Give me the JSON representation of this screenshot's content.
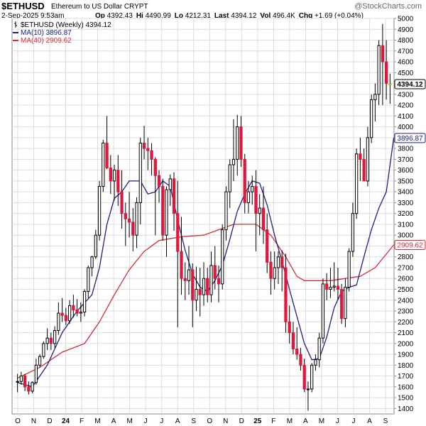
{
  "header": {
    "symbol": "$ETHUSD",
    "description": "Ethereum to US Dollar  CRYPT",
    "logo": "@StockCharts.com",
    "date": "2-Sep-2025 9:53am",
    "quote": [
      {
        "label": "Op",
        "value": "4392.43"
      },
      {
        "label": "Hi",
        "value": "4490.99"
      },
      {
        "label": "Lo",
        "value": "4212.31"
      },
      {
        "label": "Last",
        "value": "4394.12"
      },
      {
        "label": "Vol",
        "value": "496.4K"
      },
      {
        "label": "Chg",
        "value": "+1.69 (+0.04%)"
      }
    ]
  },
  "colors": {
    "up": "#ffffff",
    "down": "#e0163d",
    "wick": "#000000",
    "ma10": "#1a2080",
    "ma40": "#d42b3c",
    "grid": "#dcdcdc",
    "last_bar": "#f5e642"
  },
  "chart_data": {
    "type": "candlestick",
    "title": "$ETHUSD (Weekly) 4394.12",
    "ylim": [
      1350,
      5000
    ],
    "y_ticks": [
      1400,
      1500,
      1600,
      1700,
      1800,
      1900,
      2000,
      2100,
      2200,
      2300,
      2400,
      2500,
      2600,
      2700,
      2800,
      2900,
      3000,
      3100,
      3200,
      3300,
      3400,
      3500,
      3600,
      3700,
      3800,
      3900,
      4000,
      4100,
      4200,
      4300,
      4400,
      4500,
      4600,
      4700,
      4800,
      4900,
      5000
    ],
    "x_ticks": [
      "O",
      "N",
      "D",
      "24",
      "F",
      "M",
      "A",
      "M",
      "J",
      "J",
      "A",
      "S",
      "O",
      "N",
      "D",
      "25",
      "F",
      "M",
      "A",
      "M",
      "J",
      "J",
      "A",
      "S"
    ],
    "legend": [
      {
        "name": "$ETHUSD (Weekly)",
        "value": "4394.12"
      },
      {
        "name": "MA(10)",
        "value": "3896.87"
      },
      {
        "name": "MA(40)",
        "value": "2909.62"
      }
    ],
    "price_labels": [
      {
        "name": "Last",
        "value": "4394.12"
      },
      {
        "name": "MA(10)",
        "value": "3896.87"
      },
      {
        "name": "MA(40)",
        "value": "2909.62"
      }
    ],
    "candles": [
      [
        1650,
        1720,
        1550,
        1650
      ],
      [
        1650,
        1740,
        1620,
        1700
      ],
      [
        1700,
        1720,
        1560,
        1600
      ],
      [
        1600,
        1650,
        1530,
        1560
      ],
      [
        1560,
        1650,
        1540,
        1640
      ],
      [
        1640,
        1860,
        1620,
        1800
      ],
      [
        1800,
        1900,
        1780,
        1880
      ],
      [
        1880,
        2020,
        1860,
        2000
      ],
      [
        2000,
        2140,
        1940,
        2050
      ],
      [
        2050,
        2100,
        1940,
        2000
      ],
      [
        2000,
        2160,
        1960,
        2120
      ],
      [
        2120,
        2380,
        2080,
        2280
      ],
      [
        2280,
        2420,
        2200,
        2260
      ],
      [
        2260,
        2330,
        2170,
        2210
      ],
      [
        2210,
        2400,
        2180,
        2350
      ],
      [
        2350,
        2450,
        2240,
        2310
      ],
      [
        2310,
        2410,
        2250,
        2280
      ],
      [
        2280,
        2380,
        2200,
        2290
      ],
      [
        2290,
        2500,
        2250,
        2480
      ],
      [
        2480,
        2720,
        2420,
        2700
      ],
      [
        2700,
        2810,
        2620,
        2800
      ],
      [
        2800,
        3050,
        2780,
        3000
      ],
      [
        3000,
        3500,
        2950,
        3450
      ],
      [
        3450,
        3880,
        3400,
        3850
      ],
      [
        3850,
        4100,
        3610,
        3620
      ],
      [
        3620,
        3740,
        3380,
        3500
      ],
      [
        3500,
        3650,
        3320,
        3600
      ],
      [
        3600,
        3740,
        3270,
        3400
      ],
      [
        3400,
        3600,
        3060,
        3200
      ],
      [
        3200,
        3300,
        2900,
        3150
      ],
      [
        3150,
        3400,
        2980,
        3120
      ],
      [
        3120,
        3250,
        2850,
        3000
      ],
      [
        3000,
        3350,
        2880,
        3300
      ],
      [
        3300,
        3900,
        3100,
        3850
      ],
      [
        3850,
        4010,
        3700,
        3800
      ],
      [
        3800,
        3900,
        3600,
        3780
      ],
      [
        3780,
        3850,
        3550,
        3700
      ],
      [
        3700,
        3720,
        3000,
        3550
      ],
      [
        3550,
        3600,
        3300,
        3450
      ],
      [
        3450,
        3520,
        2950,
        3000
      ],
      [
        3000,
        3450,
        2800,
        3420
      ],
      [
        3420,
        3560,
        3270,
        3520
      ],
      [
        3520,
        3580,
        3040,
        3200
      ],
      [
        3200,
        3500,
        2150,
        2850
      ],
      [
        2850,
        3170,
        2450,
        2600
      ],
      [
        2600,
        2750,
        2400,
        2580
      ],
      [
        2580,
        2900,
        2450,
        2680
      ],
      [
        2680,
        2740,
        2150,
        2400
      ],
      [
        2400,
        2710,
        2300,
        2500
      ],
      [
        2500,
        2700,
        2250,
        2450
      ],
      [
        2450,
        2750,
        2350,
        2600
      ],
      [
        2600,
        2700,
        2380,
        2450
      ],
      [
        2450,
        2850,
        2380,
        2720
      ],
      [
        2720,
        2900,
        2500,
        2600
      ],
      [
        2600,
        2720,
        2380,
        2550
      ],
      [
        2550,
        3100,
        2500,
        3050
      ],
      [
        3050,
        3450,
        2950,
        3400
      ],
      [
        3400,
        3700,
        3250,
        3650
      ],
      [
        3650,
        4070,
        3500,
        3700
      ],
      [
        3700,
        4110,
        3550,
        4000
      ],
      [
        4000,
        4100,
        3630,
        3700
      ],
      [
        3700,
        3750,
        3200,
        3300
      ],
      [
        3300,
        3500,
        3200,
        3400
      ],
      [
        3400,
        3550,
        3280,
        3450
      ],
      [
        3450,
        3600,
        2850,
        3200
      ],
      [
        3200,
        3380,
        3000,
        3250
      ],
      [
        3250,
        3450,
        2920,
        3050
      ],
      [
        3050,
        3200,
        2650,
        2750
      ],
      [
        2750,
        2850,
        2450,
        2600
      ],
      [
        2600,
        2850,
        2500,
        2700
      ],
      [
        2700,
        2850,
        2550,
        2800
      ],
      [
        2800,
        2860,
        2480,
        2700
      ],
      [
        2700,
        2830,
        2100,
        2200
      ],
      [
        2200,
        2350,
        2000,
        2100
      ],
      [
        2100,
        2200,
        1900,
        1950
      ],
      [
        1950,
        2150,
        1850,
        1900
      ],
      [
        1900,
        1960,
        1750,
        1800
      ],
      [
        1800,
        1860,
        1550,
        1580
      ],
      [
        1580,
        1650,
        1380,
        1580
      ],
      [
        1580,
        1820,
        1550,
        1800
      ],
      [
        1800,
        1900,
        1750,
        1850
      ],
      [
        1850,
        2100,
        1780,
        2050
      ],
      [
        2050,
        2600,
        2000,
        2550
      ],
      [
        2550,
        2650,
        2400,
        2500
      ],
      [
        2500,
        2700,
        2420,
        2520
      ],
      [
        2520,
        2750,
        2480,
        2530
      ],
      [
        2530,
        2700,
        2400,
        2500
      ],
      [
        2500,
        2550,
        2180,
        2230
      ],
      [
        2230,
        2600,
        2150,
        2520
      ],
      [
        2520,
        2880,
        2480,
        2850
      ],
      [
        2850,
        3300,
        2800,
        3200
      ],
      [
        3200,
        3800,
        3150,
        3750
      ],
      [
        3750,
        3900,
        3500,
        3700
      ],
      [
        3700,
        3800,
        3520,
        3500
      ],
      [
        3500,
        4000,
        3450,
        3900
      ],
      [
        3900,
        4300,
        3850,
        4250
      ],
      [
        4250,
        4400,
        4050,
        4300
      ],
      [
        4300,
        4800,
        4200,
        4750
      ],
      [
        4750,
        4950,
        4200,
        4600
      ],
      [
        4600,
        4800,
        4250,
        4400
      ],
      [
        4392.43,
        4490.99,
        4212.31,
        4394.12
      ]
    ],
    "ma10": [
      [
        0,
        1640
      ],
      [
        4,
        1600
      ],
      [
        8,
        1800
      ],
      [
        12,
        2100
      ],
      [
        16,
        2300
      ],
      [
        20,
        2450
      ],
      [
        22,
        2700
      ],
      [
        24,
        3100
      ],
      [
        26,
        3340
      ],
      [
        28,
        3400
      ],
      [
        30,
        3500
      ],
      [
        33,
        3500
      ],
      [
        35,
        3380
      ],
      [
        37,
        3400
      ],
      [
        39,
        3500
      ],
      [
        41,
        3450
      ],
      [
        43,
        3140
      ],
      [
        45,
        2860
      ],
      [
        47,
        2640
      ],
      [
        49,
        2520
      ],
      [
        51,
        2480
      ],
      [
        53,
        2580
      ],
      [
        55,
        2720
      ],
      [
        57,
        2960
      ],
      [
        59,
        3220
      ],
      [
        61,
        3380
      ],
      [
        63,
        3500
      ],
      [
        65,
        3480
      ],
      [
        67,
        3280
      ],
      [
        69,
        3000
      ],
      [
        71,
        2760
      ],
      [
        73,
        2500
      ],
      [
        75,
        2250
      ],
      [
        77,
        2000
      ],
      [
        79,
        1850
      ],
      [
        81,
        1860
      ],
      [
        83,
        2060
      ],
      [
        85,
        2330
      ],
      [
        87,
        2480
      ],
      [
        89,
        2520
      ],
      [
        91,
        2540
      ],
      [
        93,
        2800
      ],
      [
        95,
        3050
      ],
      [
        97,
        3250
      ],
      [
        99,
        3400
      ],
      [
        101,
        3900
      ]
    ],
    "ma40": [
      [
        0,
        1680
      ],
      [
        6,
        1780
      ],
      [
        12,
        1920
      ],
      [
        18,
        2000
      ],
      [
        22,
        2200
      ],
      [
        26,
        2450
      ],
      [
        30,
        2680
      ],
      [
        34,
        2850
      ],
      [
        38,
        2950
      ],
      [
        44,
        2985
      ],
      [
        50,
        3000
      ],
      [
        54,
        3050
      ],
      [
        58,
        3100
      ],
      [
        64,
        3100
      ],
      [
        68,
        3000
      ],
      [
        72,
        2800
      ],
      [
        75,
        2620
      ],
      [
        77,
        2580
      ],
      [
        80,
        2580
      ],
      [
        84,
        2580
      ],
      [
        88,
        2600
      ],
      [
        92,
        2620
      ],
      [
        96,
        2700
      ],
      [
        101,
        2910
      ]
    ]
  }
}
